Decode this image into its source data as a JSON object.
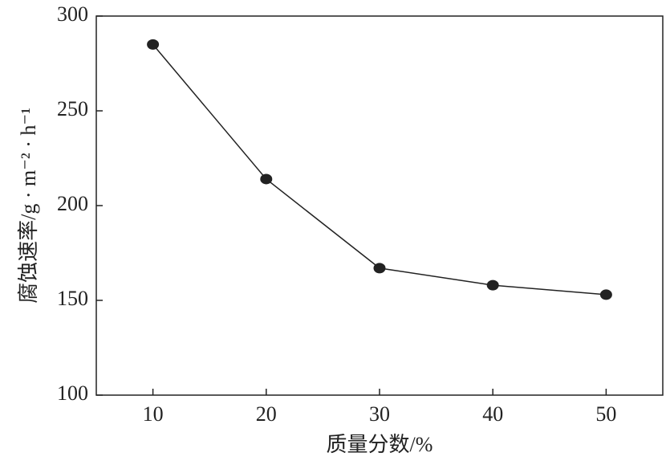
{
  "chart_data": {
    "type": "line",
    "x_label": "质量分数/%",
    "y_label": "腐蚀速率/g · m⁻² · h⁻¹",
    "x": [
      10,
      20,
      30,
      40,
      50
    ],
    "series": [
      {
        "color": "#222222",
        "values": [
          285,
          214,
          167,
          158,
          153
        ]
      }
    ],
    "xlim": [
      5,
      55
    ],
    "xticks": [
      10,
      20,
      30,
      40,
      50
    ],
    "ylim": [
      100,
      300
    ],
    "yticks": [
      100,
      150,
      200,
      250,
      300
    ]
  }
}
